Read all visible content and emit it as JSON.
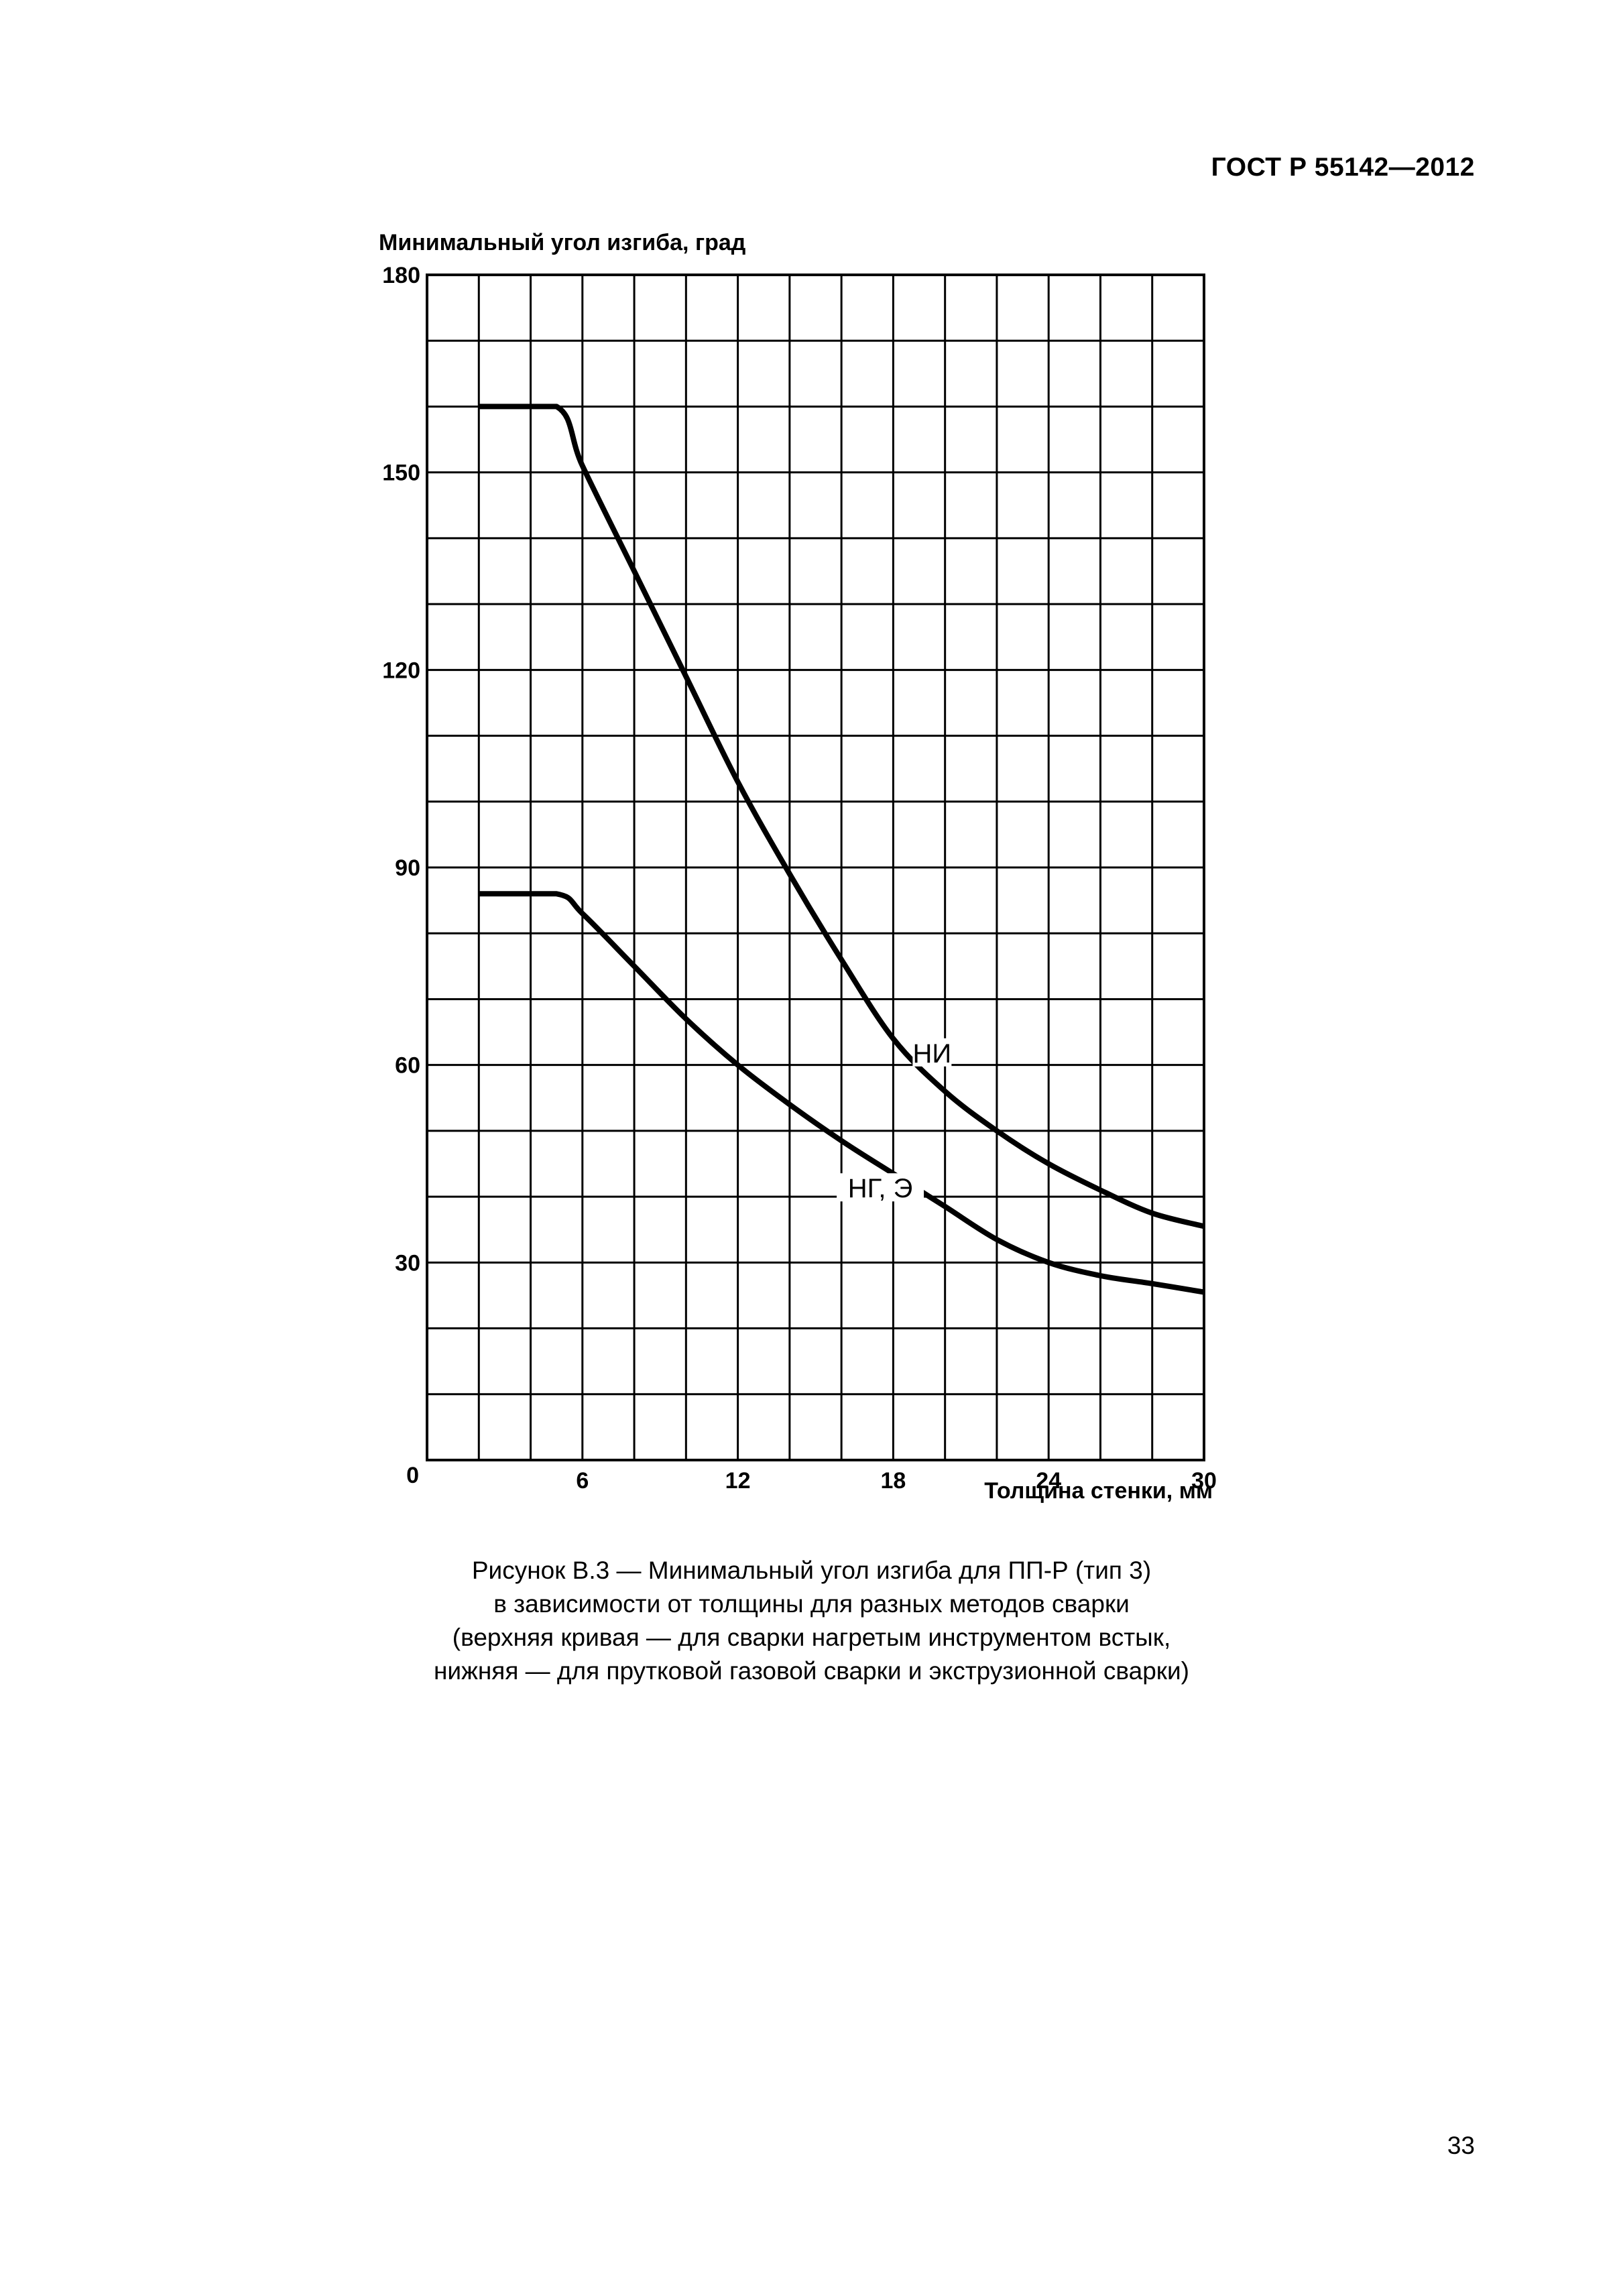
{
  "header": {
    "doc_id": "ГОСТ Р 55142—2012"
  },
  "chart_data": {
    "type": "line",
    "title": "",
    "ylabel": "Минимальный угол изгиба, град",
    "xlabel": "Толщина стенки, мм",
    "xlim": [
      0,
      30
    ],
    "ylim": [
      0,
      180
    ],
    "x_ticks": [
      6,
      12,
      18,
      24,
      30
    ],
    "x_tick_labels": [
      "6",
      "12",
      "18",
      "24",
      "30"
    ],
    "y_ticks": [
      30,
      60,
      90,
      120,
      150,
      180
    ],
    "y_tick_labels": [
      "30",
      "60",
      "90",
      "120",
      "150",
      "180"
    ],
    "origin_label": "0",
    "grid": true,
    "grid_x_step": 2,
    "grid_y_step": 10,
    "series": [
      {
        "name": "НИ",
        "x": [
          2,
          5,
          6,
          8,
          10,
          12,
          14,
          16,
          18,
          20,
          22,
          24,
          26,
          28,
          30
        ],
        "y": [
          160,
          160,
          151,
          135,
          119,
          103,
          89,
          76,
          64,
          56,
          50,
          45,
          41,
          37.5,
          35.5
        ]
      },
      {
        "name": "НГ, Э",
        "x": [
          2,
          5,
          6,
          8,
          10,
          12,
          14,
          16,
          18,
          20,
          22,
          24,
          26,
          28,
          30
        ],
        "y": [
          86,
          86,
          83,
          75,
          67,
          60,
          54,
          48.5,
          43.5,
          38.5,
          33.5,
          30,
          28,
          26.8,
          25.5
        ]
      }
    ],
    "annotations": [
      {
        "text": "НИ",
        "series": "НИ",
        "x": 19.5,
        "y": 61
      },
      {
        "text": "НГ, Э",
        "series": "НГ, Э",
        "x": 17.5,
        "y": 40.5
      }
    ]
  },
  "caption": {
    "lines": [
      "Рисунок В.3 — Минимальный угол изгиба для ПП-Р (тип 3)",
      "в зависимости от толщины для разных методов сварки",
      "(верхняя кривая — для сварки нагретым инструментом встык,",
      "нижняя — для прутковой газовой сварки и экструзионной сварки)"
    ]
  },
  "page_number": "33"
}
